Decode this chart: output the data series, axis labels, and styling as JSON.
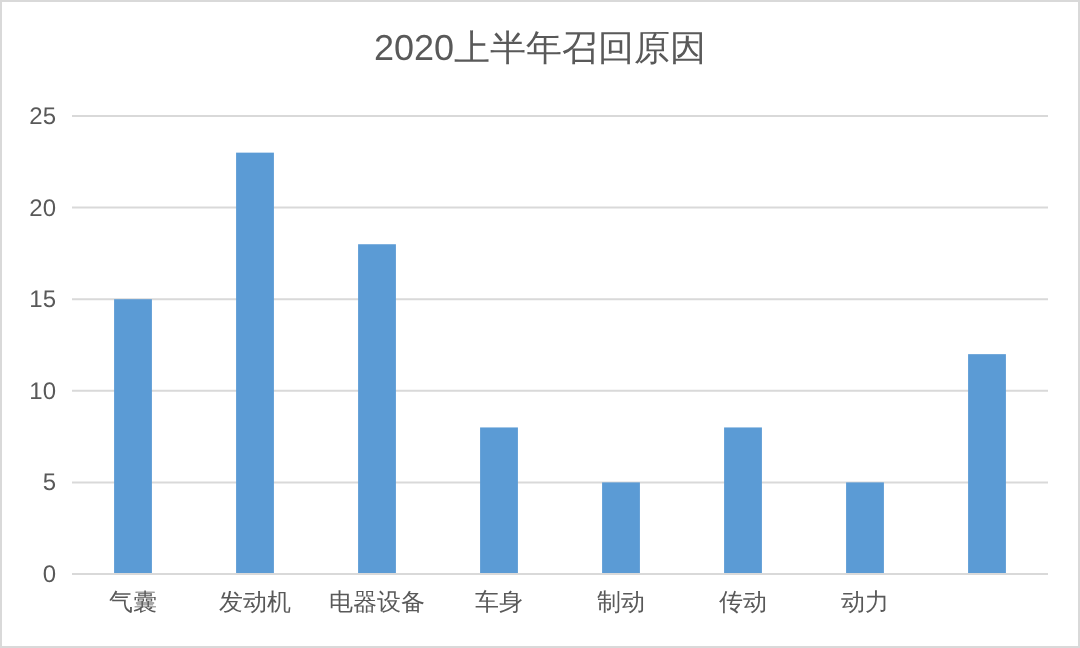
{
  "chart_data": {
    "type": "bar",
    "title": "2020上半年召回原因",
    "categories": [
      "气囊",
      "发动机",
      "电器设备",
      "车身",
      "制动",
      "传动",
      "动力",
      null
    ],
    "values": [
      15,
      23,
      18,
      8,
      5,
      8,
      5,
      12
    ],
    "color": "#5b9bd5",
    "ylim": [
      0,
      25
    ],
    "yticks": [
      0,
      5,
      10,
      15,
      20,
      25
    ],
    "grid": "y"
  }
}
